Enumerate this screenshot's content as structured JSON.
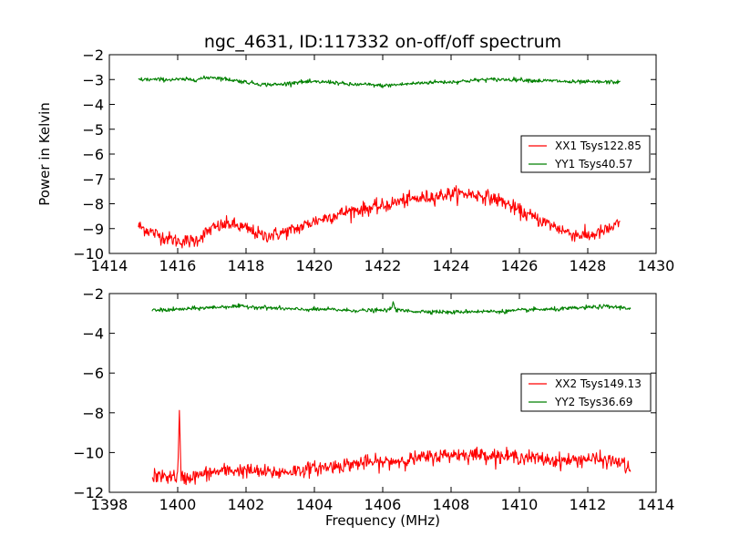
{
  "chart_data": [
    {
      "type": "line",
      "title": "ngc_4631, ID:117332 on-off/off spectrum",
      "xlabel": "",
      "ylabel": "Power in Kelvin",
      "xlim": [
        1414,
        1430
      ],
      "ylim": [
        -10,
        -2
      ],
      "xticks": [
        1414,
        1416,
        1418,
        1420,
        1422,
        1424,
        1426,
        1428,
        1430
      ],
      "yticks": [
        -10,
        -9,
        -8,
        -7,
        -6,
        -5,
        -4,
        -3,
        -2
      ],
      "grid": false,
      "legend_position": "right",
      "series": [
        {
          "name": "XX1 Tsys122.85",
          "color": "#ff0000",
          "x": [
            1414.85,
            1415.5,
            1416.0,
            1416.5,
            1417.0,
            1417.5,
            1418.0,
            1418.5,
            1419.0,
            1419.5,
            1420.0,
            1420.5,
            1421.0,
            1421.5,
            1422.0,
            1422.5,
            1423.0,
            1423.5,
            1424.0,
            1424.5,
            1425.0,
            1425.5,
            1426.0,
            1426.5,
            1427.0,
            1427.5,
            1428.0,
            1428.5,
            1428.95
          ],
          "values": [
            -8.9,
            -9.3,
            -9.5,
            -9.5,
            -9.0,
            -8.8,
            -9.0,
            -9.3,
            -9.2,
            -9.0,
            -8.7,
            -8.5,
            -8.3,
            -8.2,
            -8.1,
            -7.9,
            -7.8,
            -7.7,
            -7.6,
            -7.6,
            -7.7,
            -7.9,
            -8.3,
            -8.6,
            -8.9,
            -9.2,
            -9.3,
            -9.1,
            -8.8
          ],
          "noise": 0.14
        },
        {
          "name": "YY1 Tsys40.57",
          "color": "#008000",
          "x": [
            1414.85,
            1415.5,
            1416.0,
            1416.5,
            1417.0,
            1417.5,
            1418.0,
            1418.5,
            1419.0,
            1419.5,
            1420.0,
            1420.5,
            1421.0,
            1421.5,
            1422.0,
            1422.5,
            1423.0,
            1423.5,
            1424.0,
            1424.5,
            1425.0,
            1425.5,
            1426.0,
            1426.5,
            1427.0,
            1427.5,
            1428.0,
            1428.5,
            1428.95
          ],
          "values": [
            -3.0,
            -3.0,
            -3.0,
            -3.0,
            -2.9,
            -3.0,
            -3.1,
            -3.2,
            -3.2,
            -3.1,
            -3.1,
            -3.1,
            -3.2,
            -3.2,
            -3.25,
            -3.2,
            -3.15,
            -3.1,
            -3.1,
            -3.05,
            -3.0,
            -3.0,
            -3.0,
            -3.05,
            -3.05,
            -3.1,
            -3.1,
            -3.1,
            -3.1
          ],
          "noise": 0.04
        }
      ]
    },
    {
      "type": "line",
      "title": "",
      "xlabel": "Frequency (MHz)",
      "ylabel": "",
      "xlim": [
        1398,
        1414
      ],
      "ylim": [
        -12,
        -2
      ],
      "xticks": [
        1398,
        1400,
        1402,
        1404,
        1406,
        1408,
        1410,
        1412,
        1414
      ],
      "yticks": [
        -12,
        -10,
        -8,
        -6,
        -4,
        -2
      ],
      "grid": false,
      "legend_position": "right",
      "series": [
        {
          "name": "XX2 Tsys149.13",
          "color": "#ff0000",
          "x": [
            1399.25,
            1400.0,
            1400.05,
            1400.1,
            1400.5,
            1401.0,
            1401.5,
            1402.0,
            1402.5,
            1403.0,
            1403.5,
            1404.0,
            1404.5,
            1405.0,
            1405.5,
            1406.0,
            1406.5,
            1407.0,
            1407.5,
            1408.0,
            1408.5,
            1409.0,
            1409.5,
            1410.0,
            1410.5,
            1411.0,
            1411.5,
            1412.0,
            1412.5,
            1413.0,
            1413.25
          ],
          "values": [
            -11.2,
            -11.2,
            -8.1,
            -11.3,
            -11.2,
            -11.0,
            -10.9,
            -10.9,
            -11.0,
            -11.0,
            -10.9,
            -10.8,
            -10.7,
            -10.6,
            -10.5,
            -10.5,
            -10.4,
            -10.3,
            -10.2,
            -10.1,
            -10.1,
            -10.1,
            -10.2,
            -10.2,
            -10.3,
            -10.4,
            -10.4,
            -10.3,
            -10.4,
            -10.5,
            -10.9
          ],
          "noise": 0.18
        },
        {
          "name": "YY2 Tsys36.69",
          "color": "#008000",
          "x": [
            1399.25,
            1400.0,
            1400.5,
            1401.0,
            1401.5,
            1402.0,
            1402.5,
            1403.0,
            1403.5,
            1404.0,
            1404.5,
            1405.0,
            1405.5,
            1406.0,
            1406.25,
            1406.3,
            1406.4,
            1406.5,
            1407.0,
            1407.5,
            1408.0,
            1408.5,
            1409.0,
            1409.5,
            1410.0,
            1410.5,
            1411.0,
            1411.5,
            1412.0,
            1412.5,
            1413.0,
            1413.25
          ],
          "values": [
            -2.85,
            -2.8,
            -2.75,
            -2.7,
            -2.65,
            -2.65,
            -2.7,
            -2.75,
            -2.8,
            -2.8,
            -2.8,
            -2.85,
            -2.85,
            -2.85,
            -2.8,
            -2.4,
            -2.85,
            -2.85,
            -2.9,
            -2.9,
            -2.95,
            -2.9,
            -2.9,
            -2.9,
            -2.85,
            -2.8,
            -2.8,
            -2.75,
            -2.7,
            -2.65,
            -2.7,
            -2.75
          ],
          "noise": 0.05
        }
      ]
    }
  ]
}
